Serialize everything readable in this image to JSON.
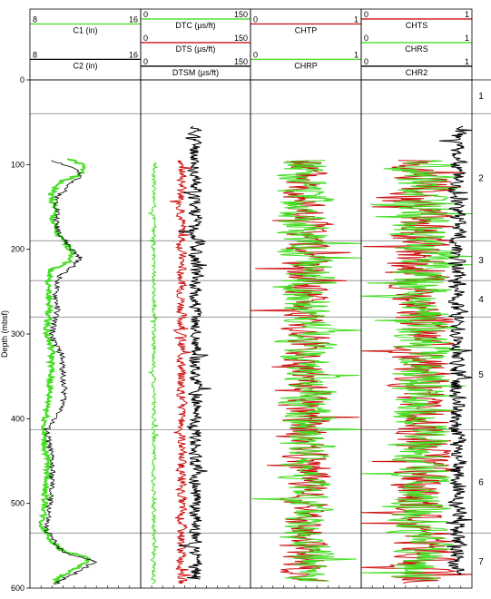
{
  "chart_data": {
    "type": "line",
    "y_axis": {
      "label": "Depth (mbsf)",
      "range": [
        0,
        600
      ],
      "ticks": [
        0,
        100,
        200,
        300,
        400,
        500,
        600
      ],
      "inverted": true
    },
    "units": {
      "labels": [
        "1",
        "2",
        "3",
        "4",
        "5",
        "6",
        "7"
      ],
      "boundaries": [
        40,
        190,
        237,
        280,
        413,
        535
      ],
      "label_depths": [
        18,
        115,
        212,
        258,
        347,
        474,
        568
      ]
    },
    "tracks": [
      {
        "id": "caliper",
        "curves": [
          {
            "name": "C1 (in)",
            "min": "8",
            "max": "16",
            "color": "#44dd22",
            "depth": [
              93,
              100,
              110,
              120,
              135,
              150,
              165,
              180,
              195,
              205,
              215,
              225,
              245,
              265,
              285,
              300,
              320,
              345,
              365,
              385,
              410,
              425,
              445,
              465,
              485,
              505,
              525,
              545,
              555,
              565,
              575,
              585,
              595
            ],
            "value": [
              10.7,
              11.8,
              11.9,
              10.2,
              9.5,
              9.8,
              9.6,
              9.9,
              10.6,
              11.2,
              10.8,
              9.5,
              9.3,
              9.4,
              9.3,
              9.2,
              9.6,
              9.5,
              9.4,
              9.3,
              9.0,
              9.0,
              9.2,
              9.3,
              9.1,
              9.1,
              8.8,
              9.6,
              10.2,
              12.4,
              11.5,
              10.3,
              9.7
            ]
          },
          {
            "name": "C2 (in)",
            "min": "8",
            "max": "16",
            "color": "#000000",
            "depth": [
              95,
              105,
              115,
              125,
              140,
              155,
              170,
              185,
              200,
              210,
              220,
              230,
              250,
              270,
              290,
              305,
              325,
              350,
              370,
              390,
              412,
              430,
              450,
              470,
              490,
              510,
              530,
              548,
              558,
              568,
              578,
              588,
              596
            ],
            "value": [
              9.6,
              11.3,
              11.6,
              10.8,
              9.9,
              10.0,
              9.9,
              10.3,
              11.0,
              11.6,
              11.2,
              10.2,
              9.8,
              10.0,
              9.7,
              9.6,
              10.3,
              10.4,
              10.5,
              10.3,
              9.2,
              9.4,
              9.6,
              9.6,
              9.5,
              9.4,
              9.1,
              9.9,
              10.5,
              12.7,
              11.8,
              10.6,
              9.8
            ]
          }
        ]
      },
      {
        "id": "sonic",
        "curves": [
          {
            "name": "DTC (µs/ft)",
            "min": "0",
            "max": "150",
            "color": "#44dd22",
            "from": 97,
            "to": 595,
            "base": 18,
            "amp": 4,
            "seed": 3
          },
          {
            "name": "DTS (µs/ft)",
            "min": "0",
            "max": "150",
            "color": "#cc1111",
            "from": 95,
            "to": 595,
            "base": 56,
            "amp": 10,
            "seed": 7
          },
          {
            "name": "DTSM (µs/ft)",
            "min": "0",
            "max": "150",
            "color": "#000000",
            "from": 55,
            "to": 590,
            "base": 75,
            "amp": 14,
            "seed": 11
          }
        ]
      },
      {
        "id": "chp",
        "curves": [
          {
            "name": "CHTP",
            "min": "0",
            "max": "1",
            "color": "#cc1111",
            "from": 95,
            "to": 592,
            "base": 0.5,
            "amp": 0.32,
            "seed": 5
          },
          {
            "name": "CHRP",
            "min": "0",
            "max": "1",
            "color": "#44dd22",
            "from": 95,
            "to": 592,
            "base": 0.5,
            "amp": 0.38,
            "seed": 13
          }
        ]
      },
      {
        "id": "chs",
        "curves": [
          {
            "name": "CHTS",
            "min": "0",
            "max": "1",
            "color": "#cc1111",
            "from": 95,
            "to": 595,
            "base": 0.55,
            "amp": 0.42,
            "seed": 17
          },
          {
            "name": "CHRS",
            "min": "0",
            "max": "1",
            "color": "#44dd22",
            "from": 95,
            "to": 590,
            "base": 0.55,
            "amp": 0.45,
            "seed": 19
          },
          {
            "name": "CHR2",
            "min": "0",
            "max": "1",
            "color": "#000000",
            "from": 55,
            "to": 585,
            "base": 0.87,
            "amp": 0.12,
            "seed": 23
          }
        ]
      }
    ]
  }
}
